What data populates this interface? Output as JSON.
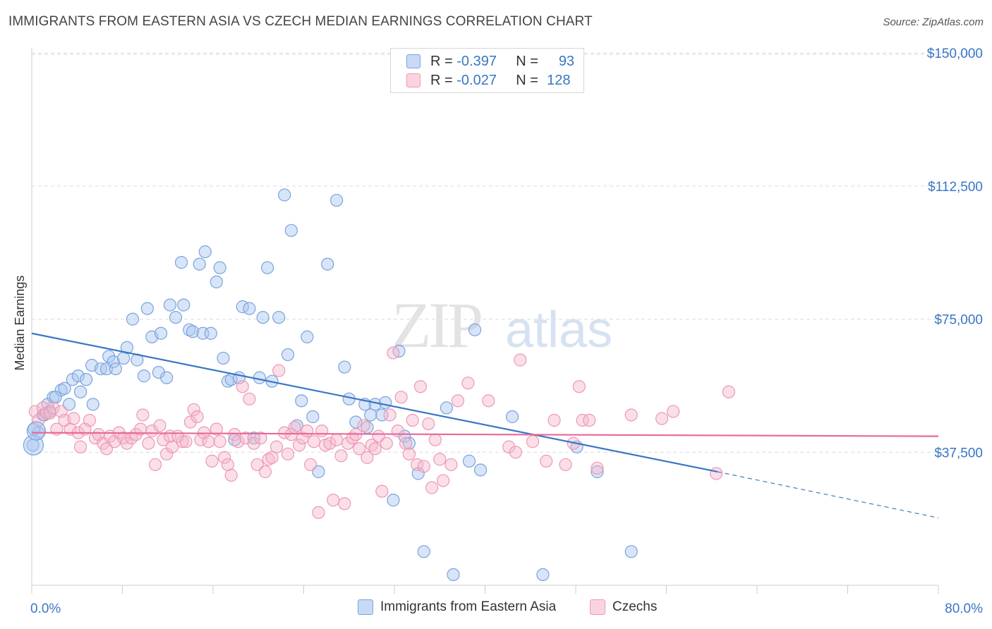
{
  "title": "IMMIGRANTS FROM EASTERN ASIA VS CZECH MEDIAN EARNINGS CORRELATION CHART",
  "source": "Source: ZipAtlas.com",
  "watermark": {
    "zip": "ZIP",
    "atlas": "atlas"
  },
  "legend": {
    "rows": [
      {
        "r_label": "R =",
        "r_value": "-0.397",
        "n_label": "N =",
        "n_value": "93",
        "color": "#a9c6ef"
      },
      {
        "r_label": "R =",
        "r_value": "-0.027",
        "n_label": "N =",
        "n_value": "128",
        "color": "#f5b8cb"
      }
    ]
  },
  "bottom_legend": [
    {
      "label": "Immigrants from Eastern Asia",
      "color": "#a9c6ef"
    },
    {
      "label": "Czechs",
      "color": "#f5b8cb"
    }
  ],
  "chart_data": {
    "type": "scatter",
    "ylabel": "Median Earnings",
    "xlim": [
      0,
      80
    ],
    "ylim": [
      0,
      157000
    ],
    "x_tick_labels": [
      "0.0%",
      "80.0%"
    ],
    "y_ticks": [
      37500,
      75000,
      112500,
      150000
    ],
    "y_tick_labels": [
      "$37,500",
      "$75,000",
      "$112,500",
      "$150,000"
    ],
    "grid": "horizontal dashed",
    "colors": {
      "blue": "#3a76c4",
      "blue_fill": "#a9c6ef",
      "pink": "#e8679a",
      "pink_fill": "#f5b8cb"
    },
    "series": [
      {
        "name": "Immigrants from Eastern Asia",
        "trend": {
          "x0": 0,
          "y0": 71000,
          "x1": 60.5,
          "y1": 32000,
          "dash_to_x": 80,
          "dash_to_y": 19000
        },
        "points": [
          [
            0.1,
            39500
          ],
          [
            0.6,
            43000
          ],
          [
            1.0,
            48000
          ],
          [
            1.4,
            51000
          ],
          [
            1.6,
            49000
          ],
          [
            1.9,
            53000
          ],
          [
            2.6,
            55000
          ],
          [
            2.9,
            55500
          ],
          [
            3.3,
            51000
          ],
          [
            3.6,
            58000
          ],
          [
            4.1,
            59000
          ],
          [
            4.3,
            54500
          ],
          [
            4.8,
            58000
          ],
          [
            5.4,
            51000
          ],
          [
            5.3,
            62000
          ],
          [
            6.1,
            61000
          ],
          [
            6.6,
            61000
          ],
          [
            6.8,
            64500
          ],
          [
            7.2,
            63000
          ],
          [
            7.4,
            61000
          ],
          [
            8.1,
            64000
          ],
          [
            8.4,
            67000
          ],
          [
            8.9,
            75000
          ],
          [
            9.3,
            63500
          ],
          [
            9.9,
            59000
          ],
          [
            10.2,
            78000
          ],
          [
            10.6,
            70000
          ],
          [
            11.2,
            60000
          ],
          [
            11.4,
            71000
          ],
          [
            11.9,
            58500
          ],
          [
            12.2,
            79000
          ],
          [
            12.7,
            75500
          ],
          [
            13.2,
            91000
          ],
          [
            13.4,
            79000
          ],
          [
            13.9,
            72000
          ],
          [
            14.2,
            71500
          ],
          [
            14.8,
            90500
          ],
          [
            15.1,
            71000
          ],
          [
            15.3,
            94000
          ],
          [
            15.8,
            71000
          ],
          [
            16.3,
            85500
          ],
          [
            16.6,
            89500
          ],
          [
            16.9,
            64000
          ],
          [
            17.3,
            57500
          ],
          [
            17.6,
            58000
          ],
          [
            17.9,
            41000
          ],
          [
            18.3,
            58500
          ],
          [
            18.6,
            78500
          ],
          [
            19.2,
            78000
          ],
          [
            19.6,
            41500
          ],
          [
            20.1,
            58500
          ],
          [
            20.4,
            75500
          ],
          [
            20.8,
            89500
          ],
          [
            21.2,
            57500
          ],
          [
            21.8,
            75500
          ],
          [
            22.3,
            110000
          ],
          [
            22.6,
            65000
          ],
          [
            22.9,
            100000
          ],
          [
            23.4,
            45000
          ],
          [
            23.8,
            52000
          ],
          [
            24.3,
            70000
          ],
          [
            24.8,
            47500
          ],
          [
            25.3,
            32000
          ],
          [
            26.1,
            90500
          ],
          [
            26.9,
            108500
          ],
          [
            27.6,
            61500
          ],
          [
            28.0,
            52500
          ],
          [
            28.6,
            46000
          ],
          [
            29.4,
            51000
          ],
          [
            29.6,
            44500
          ],
          [
            29.9,
            48000
          ],
          [
            30.3,
            51000
          ],
          [
            30.9,
            48000
          ],
          [
            31.2,
            51500
          ],
          [
            31.9,
            24000
          ],
          [
            32.4,
            66000
          ],
          [
            32.9,
            42000
          ],
          [
            33.3,
            40000
          ],
          [
            34.1,
            31500
          ],
          [
            34.6,
            9500
          ],
          [
            36.6,
            50000
          ],
          [
            37.2,
            3000
          ],
          [
            38.6,
            35000
          ],
          [
            39.1,
            72000
          ],
          [
            39.6,
            32500
          ],
          [
            42.4,
            47500
          ],
          [
            45.1,
            3000
          ],
          [
            48.1,
            39000
          ],
          [
            49.9,
            32000
          ],
          [
            52.9,
            9500
          ],
          [
            0.2,
            44000
          ],
          [
            1.1,
            48000
          ],
          [
            2.1,
            53000
          ]
        ]
      },
      {
        "name": "Czechs",
        "trend": {
          "x0": 0,
          "y0": 43000,
          "x1": 80,
          "y1": 42000
        },
        "points": [
          [
            0.3,
            49000
          ],
          [
            0.6,
            46500
          ],
          [
            1.0,
            50000
          ],
          [
            1.3,
            48500
          ],
          [
            1.6,
            48500
          ],
          [
            1.9,
            50000
          ],
          [
            2.2,
            44000
          ],
          [
            2.6,
            49000
          ],
          [
            2.9,
            46500
          ],
          [
            3.4,
            44000
          ],
          [
            3.7,
            47000
          ],
          [
            4.1,
            43000
          ],
          [
            4.3,
            39000
          ],
          [
            4.7,
            44000
          ],
          [
            5.1,
            46500
          ],
          [
            5.6,
            41500
          ],
          [
            5.9,
            42500
          ],
          [
            6.3,
            40000
          ],
          [
            6.6,
            38500
          ],
          [
            6.9,
            42000
          ],
          [
            7.3,
            40500
          ],
          [
            7.7,
            43000
          ],
          [
            8.1,
            41500
          ],
          [
            8.4,
            40000
          ],
          [
            8.8,
            41500
          ],
          [
            9.2,
            42500
          ],
          [
            9.6,
            44000
          ],
          [
            9.8,
            48000
          ],
          [
            10.3,
            40000
          ],
          [
            10.6,
            43500
          ],
          [
            10.9,
            34000
          ],
          [
            11.3,
            45000
          ],
          [
            11.6,
            41000
          ],
          [
            11.9,
            37000
          ],
          [
            12.2,
            42000
          ],
          [
            12.4,
            39000
          ],
          [
            12.9,
            42000
          ],
          [
            13.3,
            40500
          ],
          [
            13.6,
            40500
          ],
          [
            14.0,
            46000
          ],
          [
            14.3,
            49500
          ],
          [
            14.6,
            47500
          ],
          [
            14.9,
            41000
          ],
          [
            15.2,
            43000
          ],
          [
            15.6,
            40500
          ],
          [
            15.9,
            35000
          ],
          [
            16.3,
            44000
          ],
          [
            16.6,
            40500
          ],
          [
            17.0,
            36000
          ],
          [
            17.3,
            34000
          ],
          [
            17.6,
            31000
          ],
          [
            17.9,
            42500
          ],
          [
            18.2,
            40500
          ],
          [
            18.6,
            56000
          ],
          [
            18.9,
            41500
          ],
          [
            19.2,
            52500
          ],
          [
            19.6,
            40000
          ],
          [
            19.9,
            34000
          ],
          [
            20.2,
            41500
          ],
          [
            20.6,
            32000
          ],
          [
            20.9,
            35500
          ],
          [
            21.2,
            36000
          ],
          [
            21.6,
            39000
          ],
          [
            21.8,
            60500
          ],
          [
            22.3,
            43000
          ],
          [
            22.6,
            37000
          ],
          [
            22.9,
            42500
          ],
          [
            23.2,
            44500
          ],
          [
            23.6,
            39500
          ],
          [
            23.9,
            41500
          ],
          [
            24.3,
            43500
          ],
          [
            24.6,
            34000
          ],
          [
            24.9,
            40500
          ],
          [
            25.3,
            20500
          ],
          [
            25.6,
            43500
          ],
          [
            25.9,
            39500
          ],
          [
            26.3,
            40000
          ],
          [
            26.6,
            24000
          ],
          [
            26.9,
            41000
          ],
          [
            27.3,
            36500
          ],
          [
            27.6,
            23000
          ],
          [
            27.9,
            40000
          ],
          [
            28.3,
            41500
          ],
          [
            28.6,
            42500
          ],
          [
            28.9,
            38500
          ],
          [
            29.3,
            45000
          ],
          [
            29.6,
            36000
          ],
          [
            30.0,
            39500
          ],
          [
            30.3,
            38500
          ],
          [
            30.6,
            42000
          ],
          [
            30.9,
            26500
          ],
          [
            31.3,
            40000
          ],
          [
            31.6,
            48000
          ],
          [
            31.9,
            65500
          ],
          [
            32.3,
            43500
          ],
          [
            32.6,
            53000
          ],
          [
            33.0,
            40000
          ],
          [
            33.3,
            37000
          ],
          [
            33.6,
            46500
          ],
          [
            34.0,
            34000
          ],
          [
            34.3,
            56000
          ],
          [
            34.6,
            33500
          ],
          [
            35.0,
            45500
          ],
          [
            35.3,
            27500
          ],
          [
            35.6,
            41000
          ],
          [
            36.0,
            35500
          ],
          [
            36.3,
            29500
          ],
          [
            37.0,
            34000
          ],
          [
            37.6,
            52000
          ],
          [
            38.5,
            57000
          ],
          [
            40.3,
            52000
          ],
          [
            42.1,
            39000
          ],
          [
            42.7,
            37500
          ],
          [
            43.1,
            63500
          ],
          [
            44.2,
            40500
          ],
          [
            45.4,
            35000
          ],
          [
            46.1,
            46500
          ],
          [
            47.1,
            34000
          ],
          [
            47.8,
            40000
          ],
          [
            48.3,
            56000
          ],
          [
            48.6,
            46500
          ],
          [
            49.2,
            46500
          ],
          [
            49.9,
            33000
          ],
          [
            52.9,
            48000
          ],
          [
            55.6,
            47000
          ],
          [
            56.6,
            49000
          ],
          [
            61.5,
            54500
          ],
          [
            60.4,
            31500
          ]
        ]
      }
    ]
  }
}
